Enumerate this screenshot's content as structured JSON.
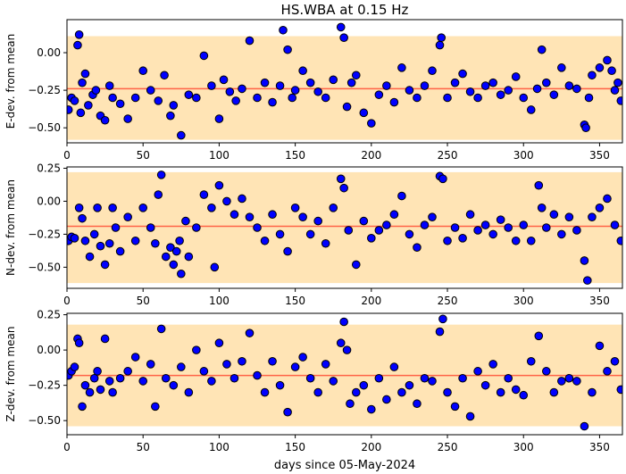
{
  "chart_data": {
    "type": "scatter",
    "title": "HS.WBA at 0.15 Hz",
    "xlabel": "days since 05-May-2024",
    "colors": {
      "marker_fill": "#0000ff",
      "marker_edge": "#000000",
      "band": "#ffe4b5",
      "mean_line": "#ff6347"
    },
    "panels": [
      {
        "ylabel": "E-dev. from mean",
        "xlim": [
          0,
          365
        ],
        "ylim": [
          -0.6,
          0.22
        ],
        "yticks": [
          -0.5,
          -0.25,
          0.0
        ],
        "ytick_labels": [
          "−0.50",
          "−0.25",
          "0.00"
        ],
        "xticks": [
          0,
          50,
          100,
          150,
          200,
          250,
          300,
          350
        ],
        "band": [
          -0.58,
          0.11
        ],
        "mean": -0.24,
        "series": [
          {
            "x": [
              1,
              3,
              5,
              7,
              8,
              9,
              10,
              12,
              14,
              17,
              19,
              22,
              25,
              28,
              30,
              35,
              40,
              45,
              50,
              55,
              60,
              64,
              68,
              70,
              75,
              80,
              85,
              90,
              95,
              100,
              103,
              107,
              111,
              115,
              120,
              125,
              130,
              135,
              140,
              142,
              145,
              148,
              150,
              155,
              160,
              165,
              170,
              175,
              180,
              182,
              184,
              187,
              190,
              195,
              200,
              205,
              210,
              215,
              220,
              225,
              230,
              235,
              240,
              245,
              246,
              250,
              255,
              260,
              265,
              270,
              275,
              280,
              285,
              290,
              295,
              300,
              305,
              309,
              312,
              315,
              320,
              325,
              330,
              335,
              340,
              341,
              343,
              345,
              350,
              355,
              358,
              360,
              362,
              364
            ],
            "y": [
              -0.38,
              -0.3,
              -0.32,
              0.05,
              0.12,
              -0.4,
              -0.2,
              -0.14,
              -0.35,
              -0.28,
              -0.25,
              -0.42,
              -0.45,
              -0.22,
              -0.3,
              -0.34,
              -0.44,
              -0.3,
              -0.12,
              -0.25,
              -0.32,
              -0.15,
              -0.42,
              -0.35,
              -0.55,
              -0.28,
              -0.3,
              -0.02,
              -0.22,
              -0.44,
              -0.18,
              -0.26,
              -0.32,
              -0.24,
              0.08,
              -0.3,
              -0.2,
              -0.33,
              -0.22,
              0.15,
              0.02,
              -0.3,
              -0.25,
              -0.12,
              -0.2,
              -0.26,
              -0.3,
              -0.18,
              0.17,
              0.1,
              -0.36,
              -0.2,
              -0.15,
              -0.4,
              -0.47,
              -0.28,
              -0.22,
              -0.33,
              -0.1,
              -0.25,
              -0.3,
              -0.22,
              -0.12,
              0.05,
              0.1,
              -0.3,
              -0.2,
              -0.14,
              -0.26,
              -0.3,
              -0.22,
              -0.2,
              -0.28,
              -0.25,
              -0.16,
              -0.3,
              -0.38,
              -0.24,
              0.02,
              -0.2,
              -0.28,
              -0.1,
              -0.22,
              -0.24,
              -0.48,
              -0.5,
              -0.3,
              -0.15,
              -0.1,
              -0.05,
              -0.12,
              -0.25,
              -0.2,
              -0.32
            ]
          }
        ]
      },
      {
        "ylabel": "N-dev. from mean",
        "xlim": [
          0,
          365
        ],
        "ylim": [
          -0.66,
          0.26
        ],
        "yticks": [
          -0.5,
          -0.25,
          0.0,
          0.25
        ],
        "ytick_labels": [
          "−0.50",
          "−0.25",
          "0.00",
          "0.25"
        ],
        "xticks": [
          0,
          50,
          100,
          150,
          200,
          250,
          300,
          350
        ],
        "band": [
          -0.62,
          0.22
        ],
        "mean": -0.19,
        "series": [
          {
            "x": [
              1,
              3,
              5,
              8,
              10,
              12,
              15,
              18,
              20,
              22,
              25,
              28,
              30,
              32,
              35,
              40,
              45,
              50,
              55,
              58,
              60,
              62,
              65,
              68,
              70,
              72,
              74,
              75,
              78,
              80,
              85,
              90,
              95,
              97,
              100,
              105,
              110,
              115,
              120,
              125,
              130,
              135,
              140,
              145,
              150,
              155,
              160,
              165,
              170,
              175,
              180,
              182,
              185,
              190,
              195,
              200,
              205,
              210,
              215,
              220,
              225,
              230,
              235,
              240,
              245,
              247,
              250,
              255,
              260,
              265,
              270,
              275,
              280,
              285,
              290,
              295,
              300,
              305,
              310,
              312,
              315,
              320,
              325,
              330,
              335,
              340,
              342,
              345,
              350,
              355,
              360,
              364
            ],
            "y": [
              -0.3,
              -0.27,
              -0.28,
              -0.05,
              -0.13,
              -0.3,
              -0.42,
              -0.25,
              -0.05,
              -0.34,
              -0.48,
              -0.32,
              -0.05,
              -0.2,
              -0.38,
              -0.12,
              -0.3,
              -0.05,
              -0.2,
              -0.32,
              0.05,
              0.2,
              -0.42,
              -0.35,
              -0.48,
              -0.38,
              -0.3,
              -0.55,
              -0.15,
              -0.42,
              -0.2,
              0.05,
              -0.05,
              -0.5,
              0.12,
              0.0,
              -0.1,
              0.02,
              -0.12,
              -0.2,
              -0.3,
              -0.1,
              -0.25,
              -0.38,
              -0.05,
              -0.12,
              -0.25,
              -0.15,
              -0.32,
              -0.05,
              0.17,
              0.1,
              -0.22,
              -0.48,
              -0.15,
              -0.28,
              -0.22,
              -0.18,
              -0.1,
              0.04,
              -0.25,
              -0.35,
              -0.18,
              -0.12,
              0.19,
              0.17,
              -0.3,
              -0.2,
              -0.28,
              -0.1,
              -0.22,
              -0.18,
              -0.25,
              -0.14,
              -0.2,
              -0.3,
              -0.18,
              -0.3,
              0.12,
              -0.05,
              -0.2,
              -0.1,
              -0.25,
              -0.12,
              -0.22,
              -0.45,
              -0.6,
              -0.12,
              -0.05,
              0.02,
              -0.18,
              -0.3
            ]
          }
        ]
      },
      {
        "ylabel": "Z-dev. from mean",
        "xlim": [
          0,
          365
        ],
        "ylim": [
          -0.6,
          0.26
        ],
        "yticks": [
          -0.5,
          -0.25,
          0.0,
          0.25
        ],
        "ytick_labels": [
          "−0.50",
          "−0.25",
          "0.00",
          "0.25"
        ],
        "xticks": [
          0,
          50,
          100,
          150,
          200,
          250,
          300,
          350
        ],
        "band": [
          -0.54,
          0.18
        ],
        "mean": -0.18,
        "series": [
          {
            "x": [
              1,
              3,
              5,
              7,
              8,
              10,
              12,
              15,
              18,
              20,
              22,
              25,
              28,
              30,
              35,
              40,
              45,
              50,
              55,
              58,
              62,
              65,
              70,
              75,
              80,
              85,
              90,
              95,
              100,
              105,
              110,
              115,
              120,
              125,
              130,
              135,
              140,
              145,
              150,
              155,
              160,
              165,
              170,
              175,
              180,
              182,
              184,
              186,
              190,
              195,
              200,
              205,
              210,
              215,
              220,
              225,
              230,
              235,
              240,
              245,
              247,
              250,
              255,
              260,
              265,
              270,
              275,
              280,
              285,
              290,
              295,
              300,
              305,
              310,
              315,
              320,
              325,
              330,
              335,
              340,
              345,
              350,
              355,
              360,
              364
            ],
            "y": [
              -0.18,
              -0.15,
              -0.12,
              0.08,
              0.05,
              -0.4,
              -0.25,
              -0.3,
              -0.2,
              -0.15,
              -0.28,
              0.08,
              -0.22,
              -0.3,
              -0.2,
              -0.15,
              -0.05,
              -0.22,
              -0.1,
              -0.4,
              0.15,
              -0.2,
              -0.25,
              -0.12,
              -0.3,
              0.0,
              -0.15,
              -0.22,
              0.05,
              -0.1,
              -0.2,
              -0.08,
              0.12,
              -0.18,
              -0.3,
              -0.08,
              -0.25,
              -0.44,
              -0.12,
              -0.05,
              -0.2,
              -0.3,
              -0.1,
              -0.22,
              0.05,
              0.2,
              0.0,
              -0.38,
              -0.3,
              -0.25,
              -0.42,
              -0.2,
              -0.35,
              -0.12,
              -0.3,
              -0.25,
              -0.38,
              -0.2,
              -0.22,
              0.13,
              0.22,
              -0.3,
              -0.4,
              -0.2,
              -0.47,
              -0.15,
              -0.25,
              -0.1,
              -0.3,
              -0.2,
              -0.28,
              -0.32,
              -0.08,
              0.1,
              -0.15,
              -0.3,
              -0.22,
              -0.2,
              -0.22,
              -0.54,
              -0.3,
              0.03,
              -0.15,
              -0.08,
              -0.28
            ]
          }
        ]
      }
    ]
  }
}
